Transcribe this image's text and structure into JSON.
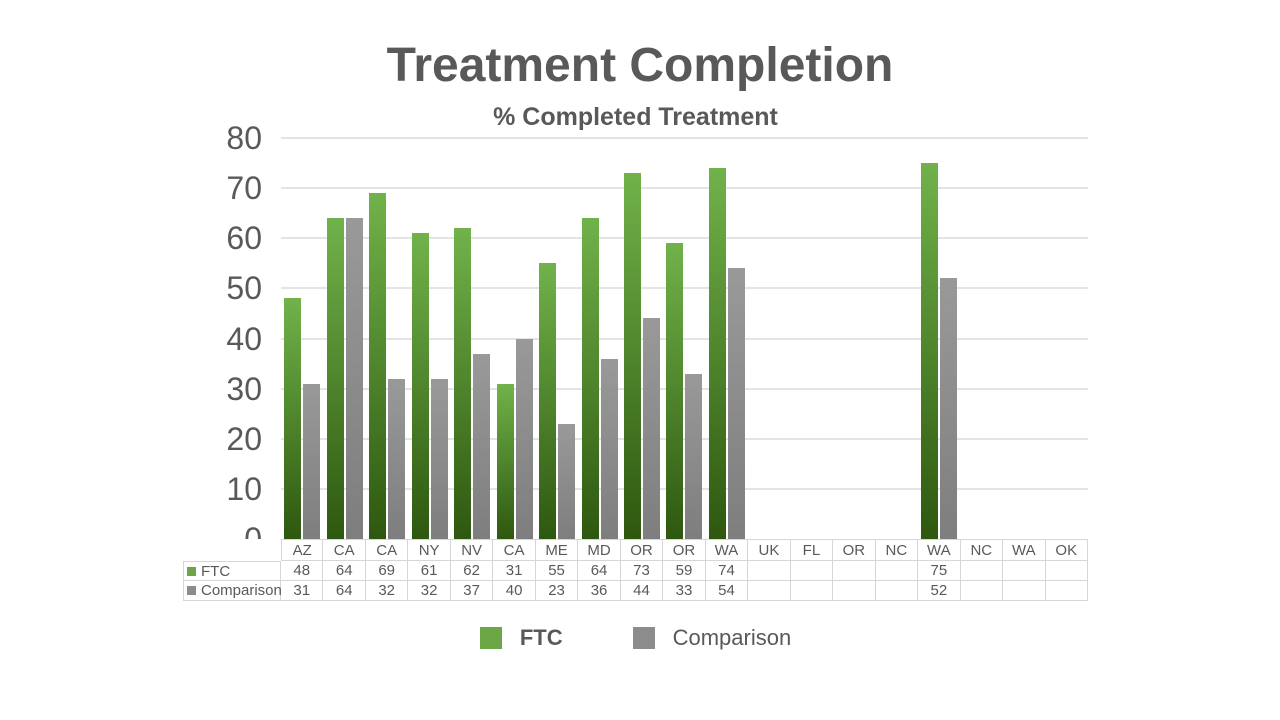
{
  "slide": {
    "title": "Treatment Completion"
  },
  "chart_data": {
    "type": "bar",
    "title": "% Completed Treatment",
    "categories": [
      "AZ",
      "CA",
      "CA",
      "NY",
      "NV",
      "CA",
      "ME",
      "MD",
      "OR",
      "OR",
      "WA",
      "UK",
      "FL",
      "OR",
      "NC",
      "WA",
      "NC",
      "WA",
      "OK"
    ],
    "series": [
      {
        "name": "FTC",
        "values": [
          48,
          64,
          69,
          61,
          62,
          31,
          55,
          64,
          73,
          59,
          74,
          null,
          null,
          null,
          null,
          75,
          null,
          null,
          null
        ],
        "bar_gradient_top": "#71b24a",
        "bar_gradient_bottom": "#2e580f",
        "legend_color": "#6da647"
      },
      {
        "name": "Comparison",
        "values": [
          31,
          64,
          32,
          32,
          37,
          40,
          23,
          36,
          44,
          33,
          54,
          null,
          null,
          null,
          null,
          52,
          null,
          null,
          null
        ],
        "bar_gradient_top": "#999999",
        "bar_gradient_bottom": "#7e7e7e",
        "legend_color": "#8c8c8c"
      }
    ],
    "xlabel": "",
    "ylabel": "",
    "ylim": [
      0,
      80
    ],
    "yticks": [
      0,
      10,
      20,
      30,
      40,
      50,
      60,
      70,
      80
    ],
    "grid": true,
    "legend_position": "bottom",
    "show_data_table": true
  },
  "colors": {
    "text": "#595959",
    "gridline": "#e4e4e4",
    "table_border": "#d6d6d6",
    "background": "#ffffff"
  }
}
